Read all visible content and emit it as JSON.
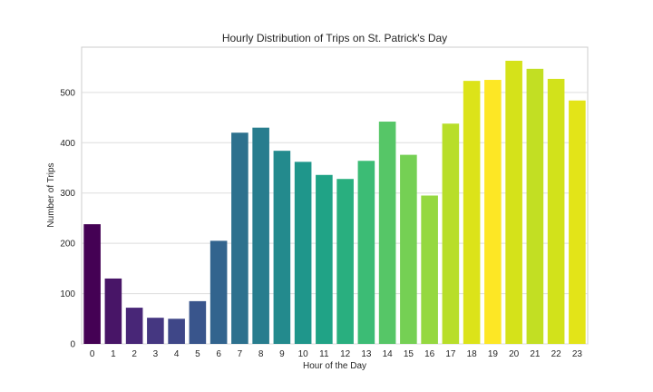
{
  "chart_data": {
    "type": "bar",
    "title": "Hourly Distribution of Trips on St. Patrick's Day",
    "xlabel": "Hour of the Day",
    "ylabel": "Number of Trips",
    "ylim": [
      0,
      590
    ],
    "yticks": [
      0,
      100,
      200,
      300,
      400,
      500
    ],
    "grid": true,
    "categories": [
      "0",
      "1",
      "2",
      "3",
      "4",
      "5",
      "6",
      "7",
      "8",
      "9",
      "10",
      "11",
      "12",
      "13",
      "14",
      "15",
      "16",
      "17",
      "18",
      "19",
      "20",
      "21",
      "22",
      "23"
    ],
    "values": [
      238,
      130,
      72,
      52,
      50,
      85,
      205,
      420,
      430,
      384,
      362,
      336,
      328,
      364,
      442,
      376,
      295,
      438,
      523,
      525,
      563,
      547,
      527,
      484
    ],
    "colors": [
      "#440154",
      "#481567",
      "#482677",
      "#453781",
      "#3f4788",
      "#39558c",
      "#32648e",
      "#2d718e",
      "#287d8e",
      "#238a8d",
      "#1f968b",
      "#20a386",
      "#29af7f",
      "#3cbc75",
      "#56c667",
      "#75d054",
      "#95d840",
      "#b8de29",
      "#dce319",
      "#fde725",
      "#d5e21a",
      "#c2df23",
      "#d2e21b",
      "#e3e418"
    ]
  }
}
